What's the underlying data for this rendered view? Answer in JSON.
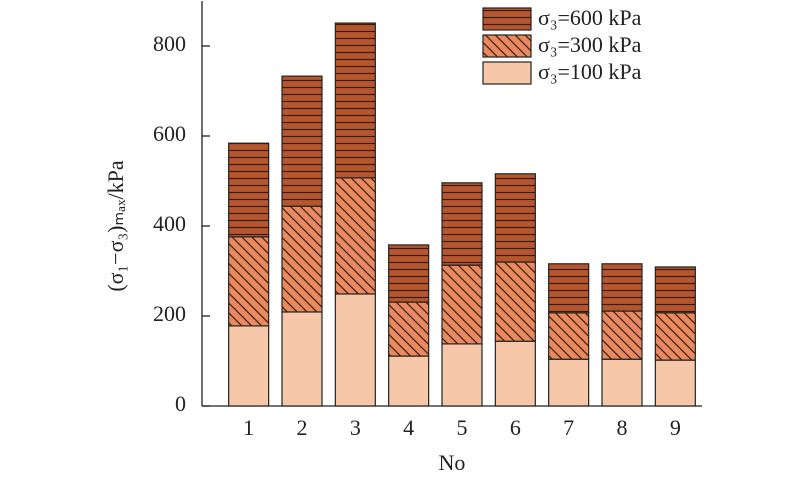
{
  "chart_data": {
    "type": "stacked_bar",
    "y_label": "(σ₁−σ₃)ₘₐₓ/kPa",
    "x_label": "No",
    "categories": [
      "1",
      "2",
      "3",
      "4",
      "5",
      "6",
      "7",
      "8",
      "9"
    ],
    "series": [
      {
        "name": "σ₃=100 kPa",
        "color": "#f7c7aa",
        "hatch": "none",
        "values": [
          178,
          209,
          249,
          111,
          138,
          144,
          104,
          104,
          102
        ]
      },
      {
        "name": "σ₃=300 kPa",
        "color": "#e98a5f",
        "hatch": "diagonal",
        "values": [
          198,
          235,
          258,
          120,
          175,
          176,
          103,
          107,
          105
        ]
      },
      {
        "name": "σ₃=600 kPa",
        "color": "#b5562f",
        "hatch": "horizontal",
        "values": [
          208,
          289,
          344,
          127,
          183,
          196,
          109,
          105,
          102
        ]
      }
    ],
    "ylim": [
      0,
      900
    ],
    "yticks": [
      0,
      200,
      400,
      600,
      800
    ]
  }
}
